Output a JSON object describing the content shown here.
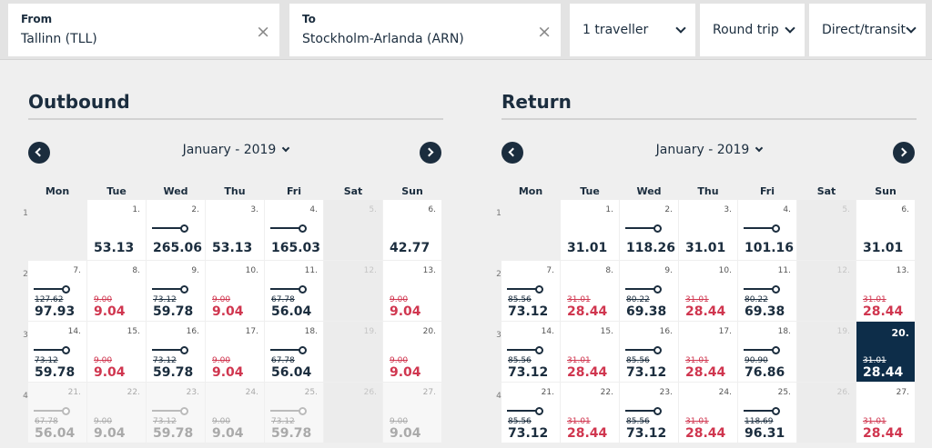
{
  "search": {
    "from_label": "From",
    "from_value": "Tallinn (TLL)",
    "to_label": "To",
    "to_value": "Stockholm-Arlanda (ARN)",
    "clear_icon": "×",
    "travellers": "1 traveller",
    "trip_type": "Round trip",
    "route": "Direct/transit"
  },
  "weekdays": [
    "Mon",
    "Tue",
    "Wed",
    "Thu",
    "Fri",
    "Sat",
    "Sun"
  ],
  "outbound": {
    "title": "Outbound",
    "month": "January - 2019",
    "weeks": [
      "1",
      "2",
      "3",
      "4"
    ],
    "days": [
      {
        "d": "",
        "empty": true
      },
      {
        "d": "1.",
        "price": "53.13"
      },
      {
        "d": "2.",
        "arrow": true,
        "price": "265.06"
      },
      {
        "d": "3.",
        "price": "53.13"
      },
      {
        "d": "4.",
        "arrow": true,
        "price": "165.03"
      },
      {
        "d": "5.",
        "sat": true
      },
      {
        "d": "6.",
        "price": "42.77"
      },
      {
        "d": "7.",
        "arrow": true,
        "old": "127.62",
        "price": "97.93"
      },
      {
        "d": "8.",
        "old": "9.00",
        "price": "9.04",
        "red": true
      },
      {
        "d": "9.",
        "arrow": true,
        "old": "73.12",
        "price": "59.78"
      },
      {
        "d": "10.",
        "old": "9.00",
        "price": "9.04",
        "red": true
      },
      {
        "d": "11.",
        "arrow": true,
        "old": "67.78",
        "price": "56.04"
      },
      {
        "d": "12.",
        "sat": true
      },
      {
        "d": "13.",
        "old": "9.00",
        "price": "9.04",
        "red": true
      },
      {
        "d": "14.",
        "arrow": true,
        "old": "73.12",
        "price": "59.78"
      },
      {
        "d": "15.",
        "old": "9.00",
        "price": "9.04",
        "red": true
      },
      {
        "d": "16.",
        "arrow": true,
        "old": "73.12",
        "price": "59.78"
      },
      {
        "d": "17.",
        "old": "9.00",
        "price": "9.04",
        "red": true
      },
      {
        "d": "18.",
        "arrow": true,
        "old": "67.78",
        "price": "56.04"
      },
      {
        "d": "19.",
        "sat": true
      },
      {
        "d": "20.",
        "old": "9.00",
        "price": "9.04",
        "red": true
      },
      {
        "d": "21.",
        "arrow": true,
        "old": "67.78",
        "price": "56.04",
        "dis": true
      },
      {
        "d": "22.",
        "old": "9.00",
        "price": "9.04",
        "dis": true
      },
      {
        "d": "23.",
        "arrow": true,
        "old": "73.12",
        "price": "59.78",
        "dis": true
      },
      {
        "d": "24.",
        "old": "9.00",
        "price": "9.04",
        "dis": true
      },
      {
        "d": "25.",
        "arrow": true,
        "old": "73.12",
        "price": "59.78",
        "dis": true
      },
      {
        "d": "26.",
        "sat": true
      },
      {
        "d": "27.",
        "old": "9.00",
        "price": "9.04",
        "dis": true
      }
    ]
  },
  "return": {
    "title": "Return",
    "month": "January - 2019",
    "weeks": [
      "1",
      "2",
      "3",
      "4"
    ],
    "days": [
      {
        "d": "",
        "empty": true
      },
      {
        "d": "1.",
        "price": "31.01"
      },
      {
        "d": "2.",
        "arrow": true,
        "price": "118.26"
      },
      {
        "d": "3.",
        "price": "31.01"
      },
      {
        "d": "4.",
        "arrow": true,
        "price": "101.16"
      },
      {
        "d": "5.",
        "sat": true
      },
      {
        "d": "6.",
        "price": "31.01"
      },
      {
        "d": "7.",
        "arrow": true,
        "old": "85.56",
        "price": "73.12"
      },
      {
        "d": "8.",
        "old": "31.01",
        "price": "28.44",
        "red": true
      },
      {
        "d": "9.",
        "arrow": true,
        "old": "80.22",
        "price": "69.38"
      },
      {
        "d": "10.",
        "old": "31.01",
        "price": "28.44",
        "red": true
      },
      {
        "d": "11.",
        "arrow": true,
        "old": "80.22",
        "price": "69.38"
      },
      {
        "d": "12.",
        "sat": true
      },
      {
        "d": "13.",
        "old": "31.01",
        "price": "28.44",
        "red": true
      },
      {
        "d": "14.",
        "arrow": true,
        "old": "85.56",
        "price": "73.12"
      },
      {
        "d": "15.",
        "old": "31.01",
        "price": "28.44",
        "red": true
      },
      {
        "d": "16.",
        "arrow": true,
        "old": "85.56",
        "price": "73.12"
      },
      {
        "d": "17.",
        "old": "31.01",
        "price": "28.44",
        "red": true
      },
      {
        "d": "18.",
        "arrow": true,
        "old": "90.90",
        "price": "76.86"
      },
      {
        "d": "19.",
        "sat": true
      },
      {
        "d": "20.",
        "old": "31.01",
        "price": "28.44",
        "sel": true
      },
      {
        "d": "21.",
        "arrow": true,
        "old": "85.56",
        "price": "73.12"
      },
      {
        "d": "22.",
        "old": "31.01",
        "price": "28.44",
        "red": true
      },
      {
        "d": "23.",
        "arrow": true,
        "old": "85.56",
        "price": "73.12"
      },
      {
        "d": "24.",
        "old": "31.01",
        "price": "28.44",
        "red": true
      },
      {
        "d": "25.",
        "arrow": true,
        "old": "118.69",
        "price": "96.31"
      },
      {
        "d": "26.",
        "sat": true
      },
      {
        "d": "27.",
        "old": "31.01",
        "price": "28.44",
        "red": true
      }
    ]
  },
  "colors": {
    "navy": "#1b2d3e",
    "selected": "#0d2d49",
    "discount_red": "#d0364f"
  }
}
